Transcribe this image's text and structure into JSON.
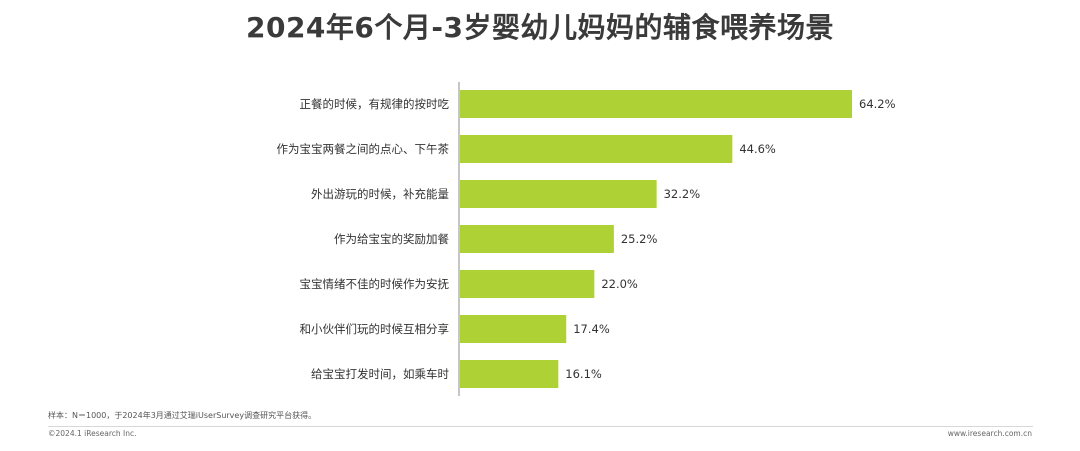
{
  "title": "2024年6个月-3岁婴幼儿妈妈的辅食喂养场景",
  "chart_data": {
    "type": "bar",
    "orientation": "horizontal",
    "title": "2024年6个月-3岁婴幼儿妈妈的辅食喂养场景",
    "categories": [
      "正餐的时候，有规律的按时吃",
      "作为宝宝两餐之间的点心、下午茶",
      "外出游玩的时候，补充能量",
      "作为给宝宝的奖励加餐",
      "宝宝情绪不佳的时候作为安抚",
      "和小伙伴们玩的时候互相分享",
      "给宝宝打发时间，如乘车时"
    ],
    "values": [
      64.2,
      44.6,
      32.2,
      25.2,
      22.0,
      17.4,
      16.1
    ],
    "value_labels": [
      "64.2%",
      "44.6%",
      "32.2%",
      "25.2%",
      "22.0%",
      "17.4%",
      "16.1%"
    ],
    "unit": "%",
    "xlim": [
      0,
      100
    ],
    "bar_color": "#aed136",
    "grid": false,
    "legend": "none"
  },
  "note": "样本：N＝1000，于2024年3月通过艾瑞iUserSurvey调查研究平台获得。",
  "copyright": "©2024.1 iResearch Inc.",
  "website": "www.iresearch.com.cn"
}
